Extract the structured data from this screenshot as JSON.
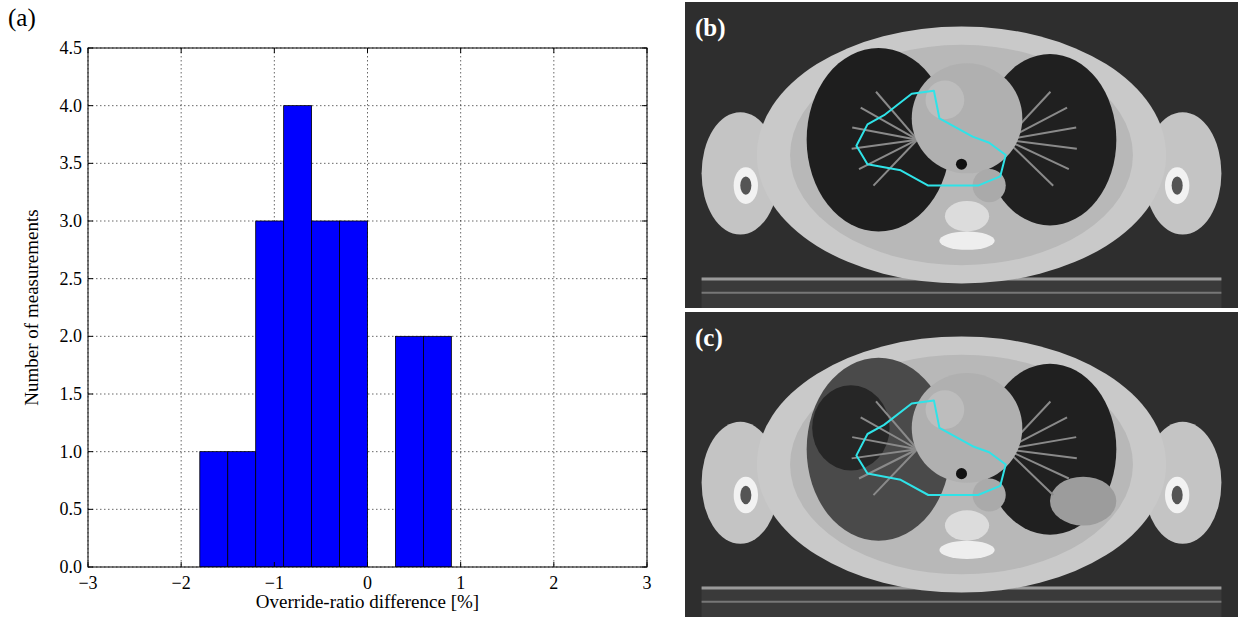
{
  "chart_data": {
    "type": "histogram",
    "x_label": "Override-ratio difference [%]",
    "y_label": "Number of measurements",
    "bins": [
      -3,
      -2.7,
      -2.4,
      -2.1,
      -1.8,
      -1.5,
      -1.2,
      -0.9,
      -0.6,
      -0.3,
      0,
      0.3,
      0.6,
      0.9
    ],
    "values": [
      0,
      0,
      0,
      0,
      1,
      1,
      3,
      4,
      3,
      3,
      0,
      2,
      2
    ],
    "color": "#0000ff",
    "xlim": [
      -3,
      3
    ],
    "xticks": [
      {
        "value": -3,
        "label": "−3"
      },
      {
        "value": -2,
        "label": "−2"
      },
      {
        "value": -1,
        "label": "−1"
      },
      0,
      1,
      2,
      3
    ],
    "ylim": [
      0,
      4.5
    ],
    "yticks": [
      {
        "value": 0,
        "label": "0.0"
      },
      {
        "value": 0.5,
        "label": "0.5"
      },
      {
        "value": 1,
        "label": "1.0"
      },
      {
        "value": 1.5,
        "label": "1.5"
      },
      {
        "value": 2,
        "label": "2.0"
      },
      {
        "value": 2.5,
        "label": "2.5"
      },
      {
        "value": 3,
        "label": "3.0"
      },
      {
        "value": 3.5,
        "label": "3.5"
      },
      {
        "value": 4,
        "label": "4.0"
      },
      {
        "value": 4.5,
        "label": "4.5"
      }
    ],
    "grid": true
  },
  "panel_labels": [
    "(a)",
    "(b)",
    "(c)"
  ]
}
